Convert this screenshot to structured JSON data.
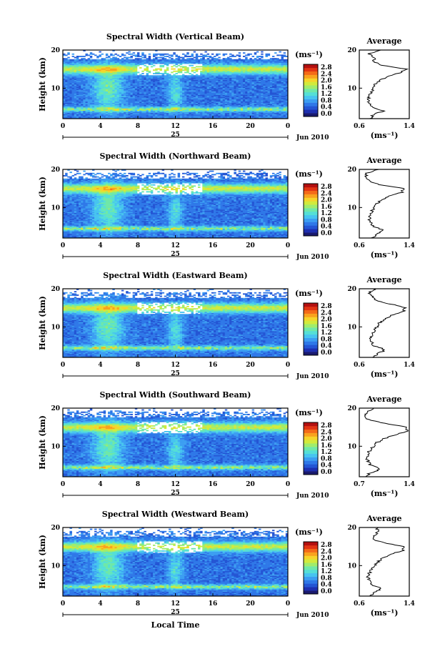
{
  "colors": {
    "scale": [
      "#1a1a6e",
      "#1e2fb0",
      "#2455d4",
      "#2f78e8",
      "#3c9ef2",
      "#47c4f0",
      "#55dfd6",
      "#6fe8a8",
      "#a0ec6c",
      "#d2ea3c",
      "#f6d42a",
      "#f9a21e",
      "#f46a18",
      "#e23414",
      "#b41010"
    ],
    "axis": "#000000",
    "profile": "#000000"
  },
  "chart_data": [
    {
      "type": "heatmap",
      "title": "Spectral Width (Vertical Beam)",
      "ylabel": "Height (km)",
      "xlim": [
        0,
        24
      ],
      "ylim": [
        2,
        20
      ],
      "xticks": [
        "0",
        "4",
        "8",
        "12",
        "16",
        "20",
        "0"
      ],
      "yticks": [
        "10",
        "20"
      ],
      "date_label": "25",
      "month_label": "Jun 2010",
      "colorbar": {
        "unit": "(ms⁻¹)",
        "ticks": [
          "2.8",
          "2.4",
          "2.0",
          "1.6",
          "1.2",
          "0.8",
          "0.4",
          "0.0"
        ]
      },
      "profile": {
        "title": "Average",
        "xlabel": "(ms⁻¹)",
        "xlim": [
          0.6,
          1.4
        ],
        "xticks": [
          "0.6",
          "1.4"
        ],
        "yticks": [
          "10",
          "20"
        ],
        "heights": [
          2,
          3,
          4,
          5,
          6,
          7,
          8,
          9,
          10,
          11,
          12,
          13,
          14,
          15,
          16,
          17,
          18,
          19,
          20
        ],
        "values": [
          0.78,
          0.82,
          0.98,
          0.8,
          0.76,
          0.74,
          0.76,
          0.8,
          0.82,
          0.85,
          0.92,
          1.05,
          1.25,
          1.35,
          0.95,
          0.82,
          0.85,
          0.75,
          0.95
        ]
      }
    },
    {
      "type": "heatmap",
      "title": "Spectral Width (Northward Beam)",
      "ylabel": "Height (km)",
      "xlim": [
        0,
        24
      ],
      "ylim": [
        2,
        20
      ],
      "xticks": [
        "0",
        "4",
        "8",
        "12",
        "16",
        "20",
        "0"
      ],
      "yticks": [
        "10",
        "20"
      ],
      "date_label": "25",
      "month_label": "Jun 2010",
      "colorbar": {
        "unit": "(ms⁻¹)",
        "ticks": [
          "2.8",
          "2.4",
          "2.0",
          "1.6",
          "1.2",
          "0.8",
          "0.4",
          "0.0"
        ]
      },
      "profile": {
        "title": "Average",
        "xlabel": "(ms⁻¹)",
        "xlim": [
          0.6,
          1.4
        ],
        "xticks": [
          "0.6",
          "1.4"
        ],
        "yticks": [
          "10",
          "20"
        ],
        "heights": [
          2,
          3,
          4,
          5,
          6,
          7,
          8,
          9,
          10,
          11,
          12,
          13,
          14,
          15,
          16,
          17,
          18,
          19,
          20
        ],
        "values": [
          0.8,
          0.88,
          1.0,
          0.82,
          0.78,
          0.76,
          0.78,
          0.8,
          0.84,
          0.88,
          0.95,
          1.08,
          1.28,
          1.3,
          0.92,
          0.75,
          0.7,
          0.72,
          0.9
        ]
      }
    },
    {
      "type": "heatmap",
      "title": "Spectral Width (Eastward Beam)",
      "ylabel": "Height (km)",
      "xlim": [
        0,
        24
      ],
      "ylim": [
        2,
        20
      ],
      "xticks": [
        "0",
        "4",
        "8",
        "12",
        "16",
        "20",
        "0"
      ],
      "yticks": [
        "10",
        "20"
      ],
      "date_label": "25",
      "month_label": "Jun 2010",
      "colorbar": {
        "unit": "(ms⁻¹)",
        "ticks": [
          "2.8",
          "2.4",
          "2.0",
          "1.6",
          "1.2",
          "0.8",
          "0.4",
          "0.0"
        ]
      },
      "profile": {
        "title": "Average",
        "xlabel": "(ms⁻¹)",
        "xlim": [
          0.6,
          1.4
        ],
        "xticks": [
          "0.6",
          "1.4"
        ],
        "yticks": [
          "10",
          "20"
        ],
        "heights": [
          2,
          3,
          4,
          5,
          6,
          7,
          8,
          9,
          10,
          11,
          12,
          13,
          14,
          15,
          16,
          17,
          18,
          19,
          20
        ],
        "values": [
          0.82,
          0.9,
          1.02,
          0.84,
          0.8,
          0.78,
          0.8,
          0.84,
          0.88,
          0.92,
          1.0,
          1.12,
          1.3,
          1.34,
          1.1,
          0.85,
          0.8,
          0.76,
          0.85
        ]
      }
    },
    {
      "type": "heatmap",
      "title": "Spectral Width (Southward Beam)",
      "ylabel": "Height (km)",
      "xlim": [
        0,
        24
      ],
      "ylim": [
        2,
        20
      ],
      "xticks": [
        "0",
        "4",
        "8",
        "12",
        "16",
        "20",
        "0"
      ],
      "yticks": [
        "10",
        "20"
      ],
      "date_label": "25",
      "month_label": "Jun 2010",
      "colorbar": {
        "unit": "(ms⁻¹)",
        "ticks": [
          "2.8",
          "2.4",
          "2.0",
          "1.6",
          "1.2",
          "0.8",
          "0.4",
          "0.0"
        ]
      },
      "profile": {
        "title": "Average",
        "xlabel": "(ms⁻¹)",
        "xlim": [
          0.7,
          1.4
        ],
        "xticks": [
          "0.7",
          "1.4"
        ],
        "yticks": [
          "10",
          "20"
        ],
        "heights": [
          2,
          3,
          4,
          5,
          6,
          7,
          8,
          9,
          10,
          11,
          12,
          13,
          14,
          15,
          16,
          17,
          18,
          19,
          20
        ],
        "values": [
          0.8,
          0.85,
          1.0,
          0.86,
          0.82,
          0.8,
          0.82,
          0.85,
          0.9,
          0.95,
          1.05,
          1.2,
          1.38,
          1.36,
          1.05,
          0.82,
          0.78,
          0.8,
          0.9
        ]
      }
    },
    {
      "type": "heatmap",
      "title": "Spectral Width (Westward Beam)",
      "ylabel": "Height (km)",
      "xlim": [
        0,
        24
      ],
      "ylim": [
        2,
        20
      ],
      "xticks": [
        "0",
        "4",
        "8",
        "12",
        "16",
        "20",
        "0"
      ],
      "yticks": [
        "10",
        "20"
      ],
      "date_label": "25",
      "month_label": "Jun 2010",
      "xlabel": "Local Time",
      "colorbar": {
        "unit": "(ms⁻¹)",
        "ticks": [
          "2.8",
          "2.4",
          "2.0",
          "1.6",
          "1.2",
          "0.8",
          "0.4",
          "0.0"
        ]
      },
      "profile": {
        "title": "Average",
        "xlabel": "(ms⁻¹)",
        "xlim": [
          0.6,
          1.4
        ],
        "xticks": [
          "0.6",
          "1.4"
        ],
        "yticks": [
          "10",
          "20"
        ],
        "heights": [
          2,
          3,
          4,
          5,
          6,
          7,
          8,
          9,
          10,
          11,
          12,
          13,
          14,
          15,
          16,
          17,
          18,
          19,
          20
        ],
        "values": [
          0.78,
          0.84,
          0.96,
          0.8,
          0.76,
          0.74,
          0.76,
          0.8,
          0.84,
          0.9,
          0.98,
          1.1,
          1.3,
          1.32,
          1.0,
          0.8,
          0.85,
          0.9,
          0.88
        ]
      }
    }
  ]
}
